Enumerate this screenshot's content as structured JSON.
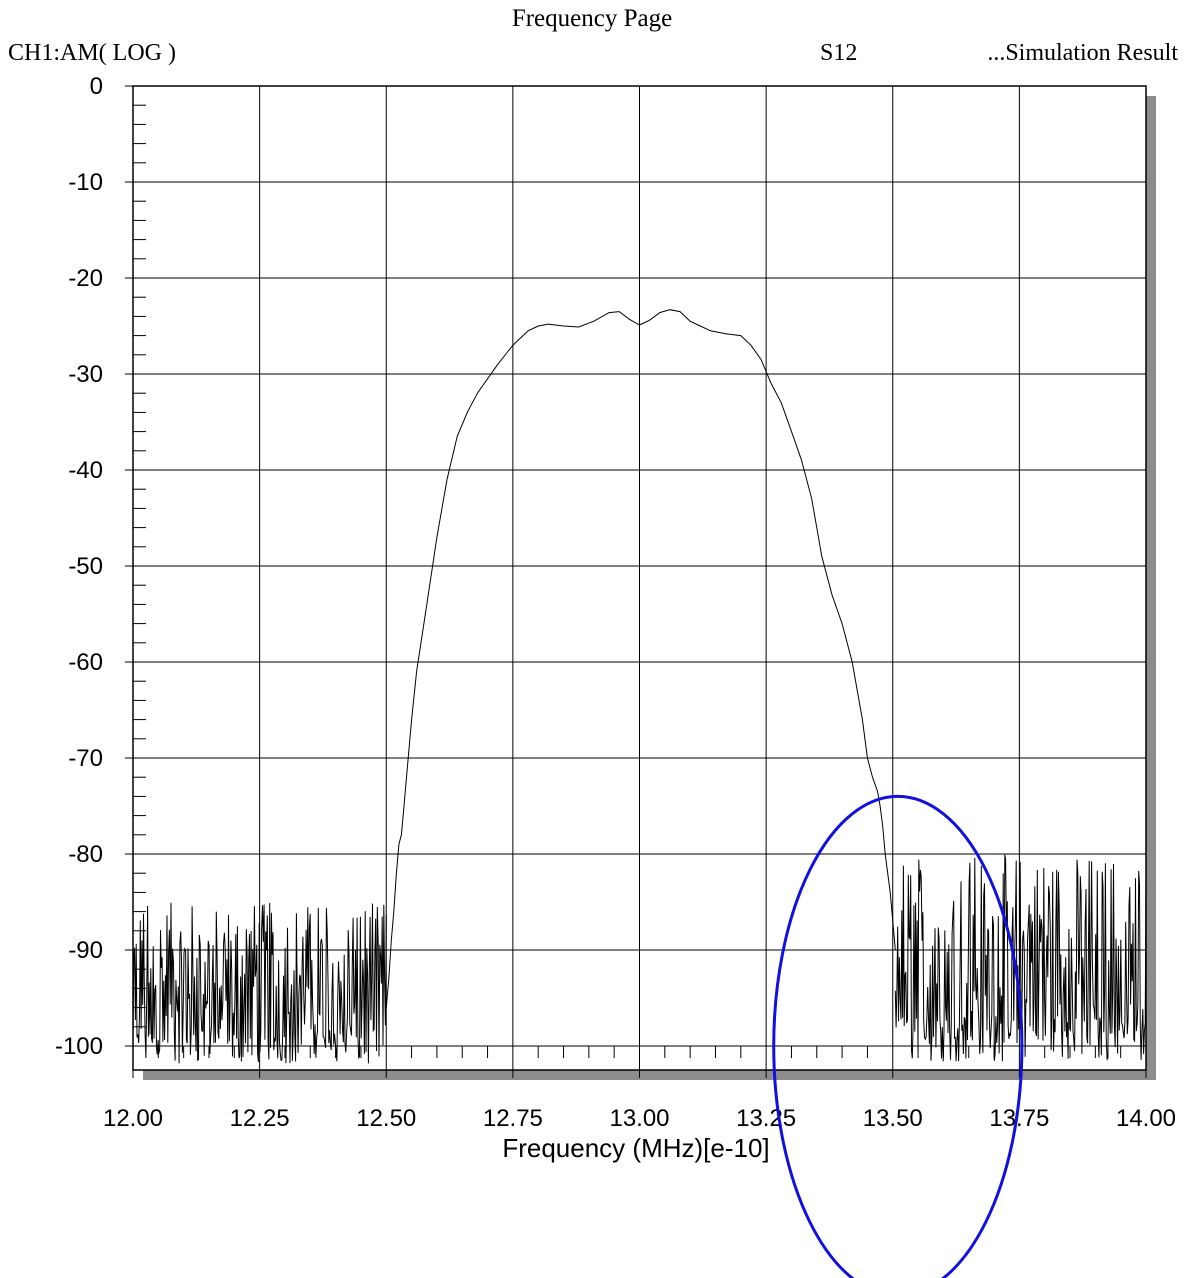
{
  "header": {
    "title": "Frequency Page",
    "channel": "CH1:AM( LOG )",
    "parameter": "S12",
    "source": "...Simulation Result"
  },
  "chart_data": {
    "type": "line",
    "xlabel": "Frequency (MHz)[e-10]",
    "ylabel": "",
    "xlim": [
      12.0,
      14.0
    ],
    "ylim": [
      -102.5,
      0
    ],
    "x_ticks": [
      "12.00",
      "12.25",
      "12.50",
      "12.75",
      "13.00",
      "13.25",
      "13.50",
      "13.75",
      "14.00"
    ],
    "x_tick_values": [
      12.0,
      12.25,
      12.5,
      12.75,
      13.0,
      13.25,
      13.5,
      13.75,
      14.0
    ],
    "y_ticks": [
      "0",
      "-10",
      "-20",
      "-30",
      "-40",
      "-50",
      "-60",
      "-70",
      "-80",
      "-90",
      "-100"
    ],
    "y_tick_values": [
      0,
      -10,
      -20,
      -30,
      -40,
      -50,
      -60,
      -70,
      -80,
      -90,
      -100
    ],
    "grid": true,
    "series": [
      {
        "color": "#000000",
        "x": [
          12.5,
          12.505,
          12.51,
          12.515,
          12.52,
          12.525,
          12.53,
          12.535,
          12.54,
          12.55,
          12.56,
          12.58,
          12.6,
          12.62,
          12.64,
          12.66,
          12.68,
          12.7,
          12.72,
          12.75,
          12.78,
          12.8,
          12.82,
          12.85,
          12.88,
          12.91,
          12.94,
          12.96,
          12.98,
          13.0,
          13.02,
          13.04,
          13.06,
          13.08,
          13.1,
          13.12,
          13.14,
          13.17,
          13.2,
          13.22,
          13.24,
          13.26,
          13.28,
          13.3,
          13.32,
          13.34,
          13.36,
          13.38,
          13.4,
          13.42,
          13.44,
          13.45,
          13.46,
          13.47,
          13.475,
          13.48,
          13.485,
          13.49,
          13.495,
          13.5,
          13.505
        ],
        "y": [
          -96,
          -93,
          -89,
          -86,
          -82,
          -79,
          -78,
          -75,
          -72,
          -66,
          -61,
          -54,
          -47,
          -41,
          -36.5,
          -34,
          -32,
          -30.5,
          -29,
          -27,
          -25.5,
          -25,
          -24.8,
          -25,
          -25.1,
          -24.5,
          -23.6,
          -23.5,
          -24.3,
          -24.9,
          -24.4,
          -23.6,
          -23.3,
          -23.5,
          -24.5,
          -25,
          -25.5,
          -25.8,
          -26,
          -27,
          -28.5,
          -31,
          -33,
          -36,
          -39,
          -43,
          -49,
          -53,
          -56,
          -60,
          -66,
          -70,
          -72,
          -73.5,
          -75,
          -77,
          -80,
          -82,
          -84,
          -87,
          -90
        ]
      }
    ],
    "noise": [
      {
        "x0": 12.0,
        "x1": 12.5,
        "ymin": -102.5,
        "ymax": -85
      },
      {
        "x0": 13.505,
        "x1": 14.0,
        "ymin": -102.5,
        "ymax": -80
      }
    ],
    "annotation": {
      "shape": "ellipse",
      "color": "#1010e0",
      "center_x": 13.51,
      "center_y": -100,
      "rx": 0.245,
      "ry": 26
    }
  }
}
